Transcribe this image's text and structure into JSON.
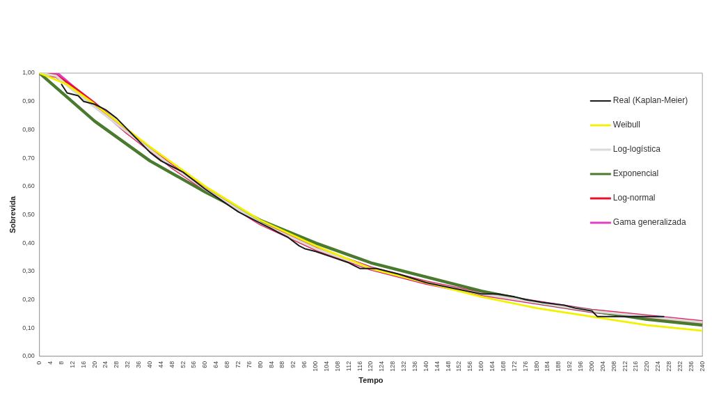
{
  "chart_data": {
    "type": "line",
    "xlabel": "Tempo",
    "ylabel": "Sobrevida",
    "xlim": [
      0,
      240
    ],
    "xticks": [
      0,
      4,
      8,
      12,
      16,
      20,
      24,
      28,
      32,
      36,
      40,
      44,
      48,
      52,
      56,
      60,
      64,
      68,
      72,
      76,
      80,
      84,
      88,
      92,
      96,
      100,
      104,
      108,
      112,
      116,
      120,
      124,
      128,
      132,
      136,
      140,
      144,
      148,
      152,
      156,
      160,
      164,
      168,
      172,
      176,
      180,
      184,
      188,
      192,
      196,
      200,
      204,
      208,
      212,
      216,
      220,
      224,
      228,
      232,
      236,
      240
    ],
    "ylim": [
      0,
      1
    ],
    "yticks": [
      {
        "value": 0,
        "label": "0,00"
      },
      {
        "value": 0.1,
        "label": "0,10"
      },
      {
        "value": 0.2,
        "label": "0,20"
      },
      {
        "value": 0.3,
        "label": "0,30"
      },
      {
        "value": 0.4,
        "label": "0,40"
      },
      {
        "value": 0.5,
        "label": "0,50"
      },
      {
        "value": 0.6,
        "label": "0,60"
      },
      {
        "value": 0.7,
        "label": "0,70"
      },
      {
        "value": 0.8,
        "label": "0,80"
      },
      {
        "value": 0.9,
        "label": "0,90"
      },
      {
        "value": 1,
        "label": "1,00"
      }
    ],
    "grid": false,
    "legend": "top right",
    "marker": "none",
    "line_style": "solid",
    "series": [
      {
        "name": "Real (Kaplan-Meier)",
        "color": "#1a1a1a",
        "x": [
          8,
          10,
          14,
          16,
          20,
          24,
          28,
          32,
          34,
          36,
          40,
          44,
          48,
          52,
          56,
          60,
          66,
          72,
          78,
          84,
          86,
          90,
          94,
          96,
          100,
          106,
          112,
          116,
          122,
          130,
          140,
          150,
          160,
          166,
          172,
          176,
          182,
          190,
          194,
          200,
          202,
          212,
          226
        ],
        "values": [
          0.96,
          0.93,
          0.92,
          0.9,
          0.89,
          0.87,
          0.84,
          0.8,
          0.78,
          0.76,
          0.72,
          0.69,
          0.67,
          0.65,
          0.62,
          0.59,
          0.55,
          0.51,
          0.48,
          0.45,
          0.44,
          0.42,
          0.39,
          0.38,
          0.37,
          0.35,
          0.33,
          0.31,
          0.31,
          0.29,
          0.26,
          0.24,
          0.22,
          0.22,
          0.21,
          0.2,
          0.19,
          0.18,
          0.17,
          0.16,
          0.14,
          0.14,
          0.14
        ]
      },
      {
        "name": "Weibull",
        "color": "#f2f200",
        "x": [
          0,
          10,
          20,
          40,
          60,
          80,
          100,
          120,
          140,
          160,
          180,
          200,
          220,
          240
        ],
        "values": [
          1.0,
          0.96,
          0.89,
          0.74,
          0.6,
          0.48,
          0.39,
          0.31,
          0.26,
          0.21,
          0.17,
          0.14,
          0.11,
          0.09
        ]
      },
      {
        "name": "Log-logística",
        "color": "#d9d9d9",
        "x": [
          0,
          6,
          12,
          20,
          32,
          48,
          60,
          80,
          100,
          120,
          140,
          160,
          180,
          200,
          220,
          240
        ],
        "values": [
          1.0,
          0.99,
          0.94,
          0.88,
          0.79,
          0.67,
          0.59,
          0.47,
          0.38,
          0.31,
          0.26,
          0.22,
          0.19,
          0.16,
          0.14,
          0.12
        ]
      },
      {
        "name": "Exponencial",
        "color": "#4a7a2e",
        "x": [
          0,
          20,
          40,
          60,
          80,
          100,
          120,
          140,
          160,
          180,
          200,
          220,
          240
        ],
        "values": [
          1.0,
          0.83,
          0.69,
          0.58,
          0.48,
          0.4,
          0.33,
          0.28,
          0.23,
          0.19,
          0.16,
          0.13,
          0.11
        ]
      },
      {
        "name": "Log-normal",
        "color": "#e8102a",
        "x": [
          0,
          6,
          12,
          20,
          32,
          48,
          60,
          80,
          100,
          120,
          140,
          160,
          180,
          200,
          220,
          240
        ],
        "values": [
          1.0,
          0.99,
          0.95,
          0.89,
          0.79,
          0.67,
          0.59,
          0.47,
          0.38,
          0.31,
          0.26,
          0.22,
          0.19,
          0.16,
          0.14,
          0.12
        ]
      },
      {
        "name": "Gama generalizada",
        "color": "#e040c0",
        "x": [
          0,
          6,
          12,
          20,
          32,
          48,
          60,
          80,
          100,
          120,
          140,
          160,
          180,
          200,
          220,
          240
        ],
        "values": [
          1.0,
          1.0,
          0.95,
          0.89,
          0.79,
          0.67,
          0.59,
          0.47,
          0.38,
          0.31,
          0.26,
          0.22,
          0.19,
          0.16,
          0.14,
          0.12
        ]
      }
    ]
  }
}
